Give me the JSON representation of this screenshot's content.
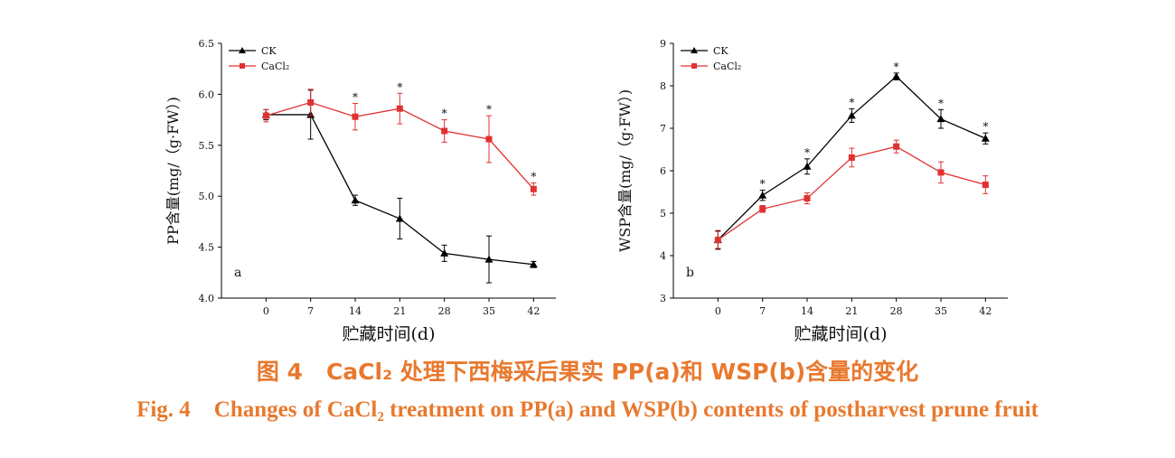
{
  "chart_data": [
    {
      "type": "line",
      "panel_label": "a",
      "ylabel": "PP含量(mg/（g·FW）)",
      "xlabel": "贮藏时间(d)",
      "x": [
        0,
        7,
        14,
        21,
        28,
        35,
        42
      ],
      "ylim": [
        4.0,
        6.5
      ],
      "yticks": [
        "4.0",
        "4.5",
        "5.0",
        "5.5",
        "6.0",
        "6.5"
      ],
      "legend_position": "top-left",
      "series": [
        {
          "name": "CK",
          "color": "#000000",
          "marker": "triangle",
          "values": [
            5.8,
            5.8,
            4.96,
            4.78,
            4.44,
            4.38,
            4.33
          ],
          "errors": [
            0.05,
            0.24,
            0.05,
            0.2,
            0.08,
            0.23,
            0.03
          ]
        },
        {
          "name": "CaCl₂",
          "color": "#e03030",
          "marker": "square",
          "values": [
            5.79,
            5.92,
            5.78,
            5.86,
            5.64,
            5.56,
            5.07
          ],
          "errors": [
            0.06,
            0.13,
            0.13,
            0.15,
            0.11,
            0.23,
            0.06
          ]
        }
      ],
      "significance": [
        "",
        "",
        "*",
        "*",
        "*",
        "*",
        "*"
      ]
    },
    {
      "type": "line",
      "panel_label": "b",
      "ylabel": "WSP含量(mg/（g·FW）)",
      "xlabel": "贮藏时间(d)",
      "x": [
        0,
        7,
        14,
        21,
        28,
        35,
        42
      ],
      "ylim": [
        3,
        9
      ],
      "yticks": [
        "3",
        "4",
        "5",
        "6",
        "7",
        "8",
        "9"
      ],
      "legend_position": "top-left",
      "series": [
        {
          "name": "CK",
          "color": "#000000",
          "marker": "triangle",
          "values": [
            4.37,
            5.42,
            6.1,
            7.3,
            8.22,
            7.22,
            6.76
          ],
          "errors": [
            0.22,
            0.12,
            0.18,
            0.16,
            0.08,
            0.22,
            0.13
          ]
        },
        {
          "name": "CaCl₂",
          "color": "#e03030",
          "marker": "square",
          "values": [
            4.37,
            5.1,
            5.35,
            6.31,
            6.57,
            5.96,
            5.67
          ],
          "errors": [
            0.2,
            0.08,
            0.13,
            0.22,
            0.15,
            0.25,
            0.21
          ]
        }
      ],
      "significance": [
        "",
        "*",
        "*",
        "*",
        "*",
        "*",
        "*"
      ]
    }
  ],
  "caption": {
    "cn_number": "图 4",
    "cn_text": "CaCl₂ 处理下西梅采后果实 PP(a)和 WSP(b)含量的变化",
    "en_number": "Fig. 4",
    "en_text": "Changes of CaCl₂ treatment on PP(a) and WSP(b) contents of postharvest prune fruit"
  }
}
